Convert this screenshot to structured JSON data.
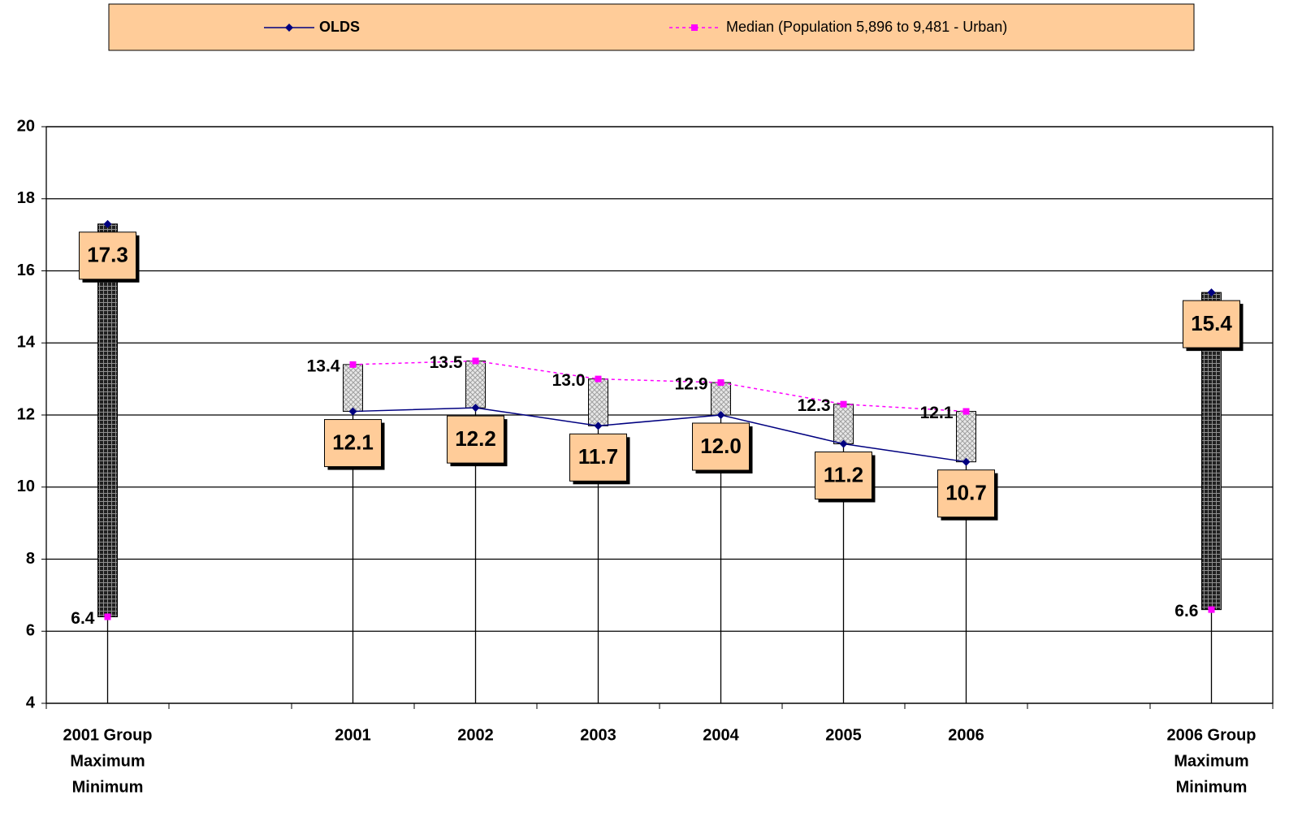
{
  "chart_data": {
    "type": "line",
    "categories": [
      [
        "2001 Group",
        "Maximum",
        "Minimum"
      ],
      null,
      "2001",
      "2002",
      "2003",
      "2004",
      "2005",
      "2006",
      null,
      [
        "2006 Group",
        "Maximum",
        "Minimum"
      ]
    ],
    "series": [
      {
        "name": "OLDS",
        "color": "#000080",
        "marker": "diamond",
        "dash": "solid",
        "values": [
          17.3,
          null,
          12.1,
          12.2,
          11.7,
          12.0,
          11.2,
          10.7,
          null,
          15.4
        ],
        "value_labels": [
          "17.3",
          null,
          "12.1",
          "12.2",
          "11.7",
          "12.0",
          "11.2",
          "10.7",
          null,
          "15.4"
        ]
      },
      {
        "name": "Median (Population 5,896 to 9,481 - Urban)",
        "color": "#FF00FF",
        "marker": "square",
        "dash": "dotted",
        "values": [
          6.4,
          null,
          13.4,
          13.5,
          13.0,
          12.9,
          12.3,
          12.1,
          null,
          6.6
        ],
        "value_labels": [
          "6.4",
          null,
          "13.4",
          "13.5",
          "13.0",
          "12.9",
          "12.3",
          "12.1",
          null,
          "6.6"
        ]
      }
    ],
    "ylim": [
      4,
      20
    ],
    "yticks": [
      4,
      6,
      8,
      10,
      12,
      14,
      16,
      18,
      20
    ],
    "grid": true,
    "legend": "top",
    "up_bar_color": "#d0d0d0",
    "down_bar_color": "#303030",
    "label_box_color": "#FFCC99"
  }
}
